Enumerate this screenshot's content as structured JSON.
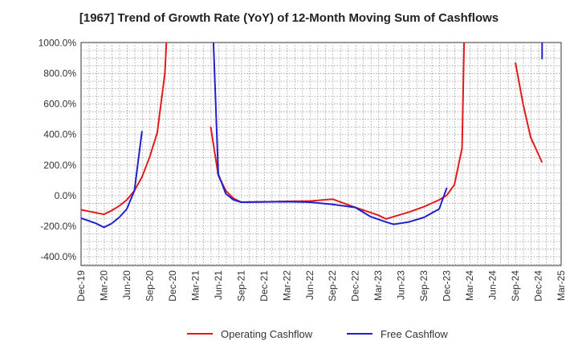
{
  "chart_data": {
    "type": "line",
    "title": "[1967]  Trend of Growth Rate (YoY) of 12-Month Moving Sum of Cashflows",
    "xlabel": "",
    "ylabel": "",
    "ylim": [
      -460,
      1000
    ],
    "y_ticks": [
      {
        "value": 1000,
        "label": "1000.0%"
      },
      {
        "value": 800,
        "label": "800.0%"
      },
      {
        "value": 600,
        "label": "600.0%"
      },
      {
        "value": 400,
        "label": "400.0%"
      },
      {
        "value": 200,
        "label": "200.0%"
      },
      {
        "value": 0,
        "label": "0.0%"
      },
      {
        "value": -200,
        "label": "-200.0%"
      },
      {
        "value": -400,
        "label": "-400.0%"
      }
    ],
    "x_ticks": [
      "Dec-19",
      "Mar-20",
      "Jun-20",
      "Sep-20",
      "Dec-20",
      "Mar-21",
      "Jun-21",
      "Sep-21",
      "Dec-21",
      "Mar-22",
      "Jun-22",
      "Sep-22",
      "Dec-22",
      "Mar-23",
      "Jun-23",
      "Sep-23",
      "Dec-23",
      "Mar-24",
      "Jun-24",
      "Sep-24",
      "Dec-24",
      "Mar-25"
    ],
    "grid": true,
    "legend_position": "bottom",
    "series": [
      {
        "name": "Operating Cashflow",
        "color": "#e31a1c",
        "points": [
          [
            0,
            -95
          ],
          [
            2,
            -115
          ],
          [
            3,
            -125
          ],
          [
            4,
            -100
          ],
          [
            5,
            -70
          ],
          [
            6,
            -30
          ],
          [
            7,
            30
          ],
          [
            8,
            120
          ],
          [
            9,
            250
          ],
          [
            10,
            410
          ],
          [
            11,
            800
          ],
          [
            11.3,
            1100
          ],
          [
            null,
            null
          ],
          [
            17,
            450
          ],
          [
            18,
            130
          ],
          [
            19,
            30
          ],
          [
            20,
            -20
          ],
          [
            21,
            -45
          ],
          [
            24,
            -43
          ],
          [
            27,
            -40
          ],
          [
            30,
            -38
          ],
          [
            33,
            -25
          ],
          [
            36,
            -80
          ],
          [
            39,
            -130
          ],
          [
            40,
            -155
          ],
          [
            43,
            -110
          ],
          [
            45,
            -75
          ],
          [
            47,
            -30
          ],
          [
            48,
            0
          ],
          [
            49,
            70
          ],
          [
            50,
            310
          ],
          [
            50.3,
            1100
          ],
          [
            null,
            null
          ],
          [
            57,
            870
          ],
          [
            58,
            600
          ],
          [
            59,
            380
          ],
          [
            60.5,
            215
          ]
        ]
      },
      {
        "name": "Free Cashflow",
        "color": "#1f1fcf",
        "points": [
          [
            0,
            -150
          ],
          [
            2,
            -185
          ],
          [
            3,
            -210
          ],
          [
            4,
            -185
          ],
          [
            5,
            -145
          ],
          [
            6,
            -90
          ],
          [
            7,
            30
          ],
          [
            8,
            420
          ],
          [
            null,
            null
          ],
          [
            17.3,
            1100
          ],
          [
            18,
            140
          ],
          [
            19,
            10
          ],
          [
            20,
            -30
          ],
          [
            21,
            -45
          ],
          [
            24,
            -43
          ],
          [
            27,
            -42
          ],
          [
            30,
            -45
          ],
          [
            33,
            -60
          ],
          [
            36,
            -80
          ],
          [
            38,
            -140
          ],
          [
            40,
            -175
          ],
          [
            41,
            -190
          ],
          [
            43,
            -175
          ],
          [
            45,
            -145
          ],
          [
            47,
            -90
          ],
          [
            48,
            50
          ],
          [
            null,
            null
          ],
          [
            60.5,
            1100
          ],
          [
            60.5,
            890
          ]
        ]
      }
    ]
  }
}
